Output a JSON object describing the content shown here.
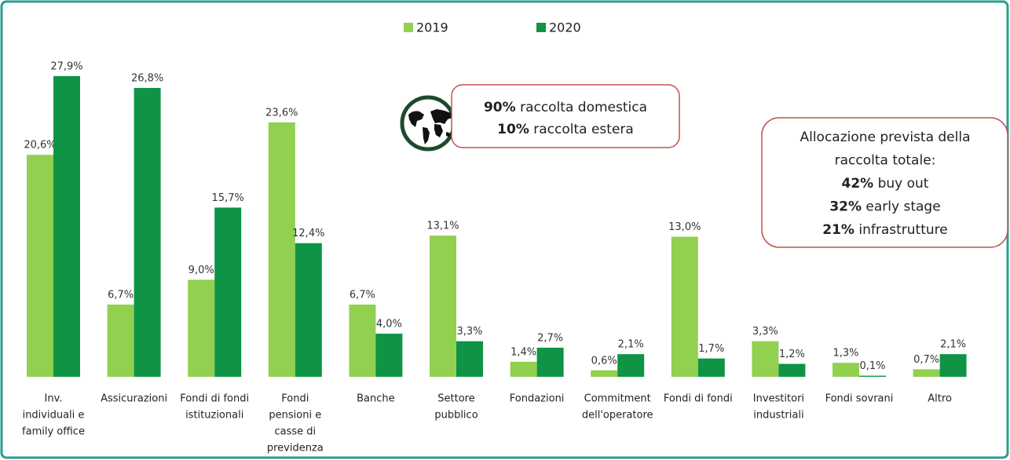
{
  "chart_data": {
    "type": "bar",
    "categories": [
      [
        "Inv.",
        "individuali e",
        "family office"
      ],
      [
        "Assicurazioni"
      ],
      [
        "Fondi di fondi",
        "istituzionali"
      ],
      [
        "Fondi",
        "pensioni e",
        "casse di",
        "previdenza"
      ],
      [
        "Banche"
      ],
      [
        "Settore",
        "pubblico"
      ],
      [
        "Fondazioni"
      ],
      [
        "Commitment",
        "dell'operatore"
      ],
      [
        "Fondi di fondi"
      ],
      [
        "Investitori",
        "industriali"
      ],
      [
        "Fondi sovrani"
      ],
      [
        "Altro"
      ]
    ],
    "series": [
      {
        "name": "2019",
        "color": "#92d050",
        "values": [
          20.6,
          6.7,
          9.0,
          23.6,
          6.7,
          13.1,
          1.4,
          0.6,
          13.0,
          3.3,
          1.3,
          0.7
        ],
        "value_labels": [
          "20,6%",
          "6,7%",
          "9,0%",
          "23,6%",
          "6,7%",
          "13,1%",
          "1,4%",
          "0,6%",
          "13,0%",
          "3,3%",
          "1,3%",
          "0,7%"
        ]
      },
      {
        "name": "2020",
        "color": "#0e9444",
        "values": [
          27.9,
          26.8,
          15.7,
          12.4,
          4.0,
          3.3,
          2.7,
          2.1,
          1.7,
          1.2,
          0.1,
          2.1
        ],
        "value_labels": [
          "27,9%",
          "26,8%",
          "15,7%",
          "12,4%",
          "4,0%",
          "3,3%",
          "2,7%",
          "2,1%",
          "1,7%",
          "1,2%",
          "0,1%",
          "2,1%"
        ]
      }
    ],
    "legend": "top",
    "annotations": [
      {
        "lines": [
          "90% raccolta domestica",
          "10% raccolta estera"
        ]
      },
      {
        "lines": [
          "Allocazione prevista della",
          "raccolta totale:",
          "42% buy out",
          "32% early stage",
          "21% infrastrutture"
        ]
      }
    ]
  }
}
